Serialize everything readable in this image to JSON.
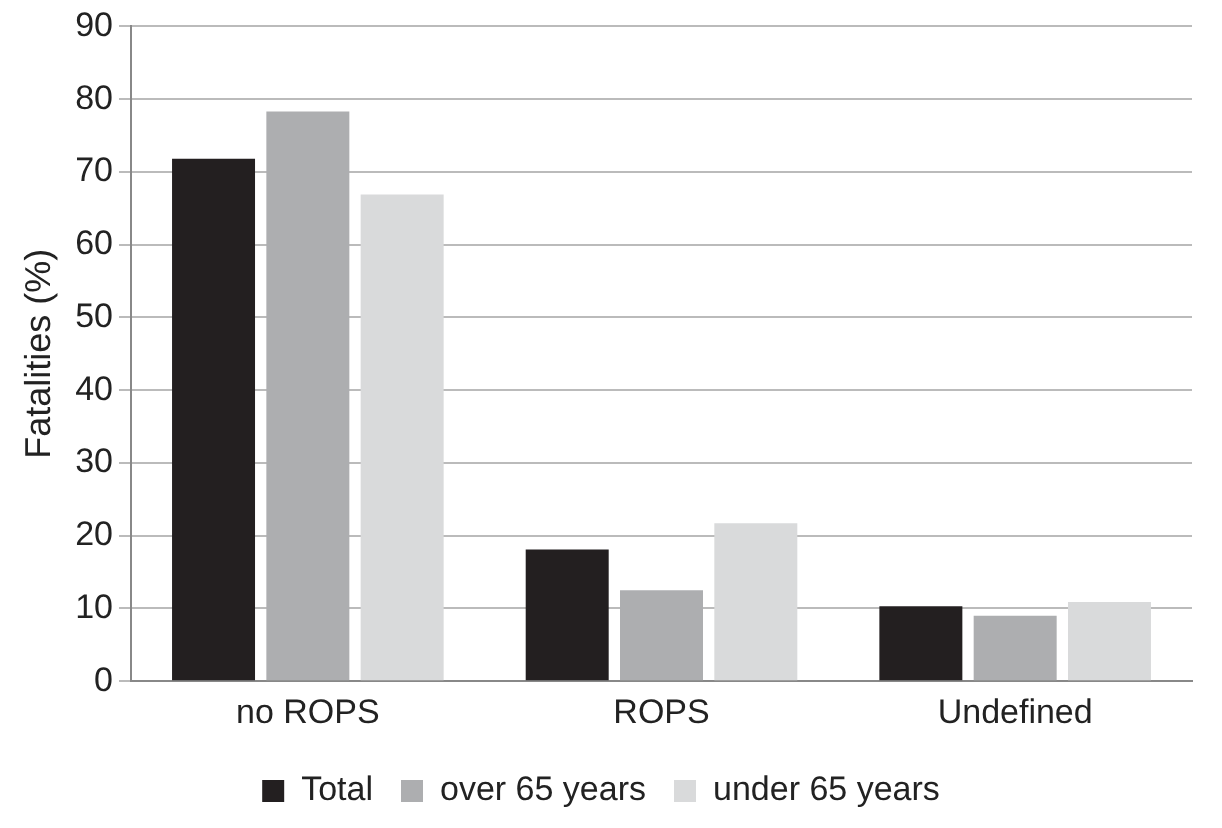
{
  "chart_data": {
    "type": "bar",
    "ylabel": "Fatalities (%)",
    "categories": [
      "no ROPS",
      "ROPS",
      "Undefined"
    ],
    "series": [
      {
        "name": "Total",
        "color": "#231f20",
        "values": [
          71.8,
          18.1,
          10.3
        ]
      },
      {
        "name": "over 65 years",
        "color": "#adaeb0",
        "values": [
          78.3,
          12.5,
          9.0
        ]
      },
      {
        "name": "under 65 years",
        "color": "#d9dadb",
        "values": [
          66.9,
          21.7,
          10.9
        ]
      }
    ],
    "ylim": [
      0,
      90
    ],
    "yticks": [
      0,
      10,
      20,
      30,
      40,
      50,
      60,
      70,
      80,
      90
    ],
    "grid": "y",
    "legend": "bottom"
  }
}
